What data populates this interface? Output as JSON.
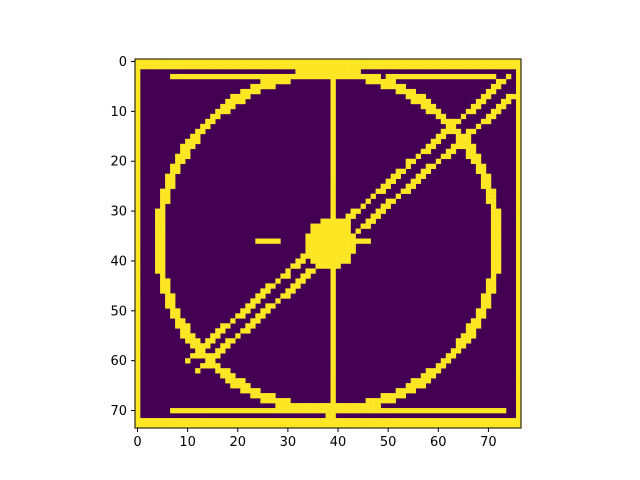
{
  "chart_data": {
    "type": "heatmap",
    "title": "",
    "xlabel": "",
    "ylabel": "",
    "xlim": [
      -0.5,
      76.5
    ],
    "ylim": [
      73.5,
      -0.5
    ],
    "x_ticks": [
      0,
      10,
      20,
      30,
      40,
      50,
      60,
      70
    ],
    "y_ticks": [
      0,
      10,
      20,
      30,
      40,
      50,
      60,
      70
    ],
    "colormap": "viridis",
    "values_binary": [
      0,
      1
    ],
    "colors": {
      "zero": "#440154",
      "one": "#fde725"
    },
    "grid": false,
    "legend": "none",
    "features": {
      "border": "yellow frame around entire image",
      "circle": {
        "center": [
          38,
          36
        ],
        "radius": 34
      },
      "vertical_line": {
        "x": 39,
        "y_from": 0,
        "y_to": 73
      },
      "diagonal_lines": [
        {
          "from": [
            10,
            60
          ],
          "to": [
            74,
            3
          ]
        },
        {
          "from": [
            12,
            62
          ],
          "to": [
            76,
            6
          ]
        }
      ],
      "hub_disk": {
        "center": [
          38.5,
          36.5
        ],
        "radius": 5
      }
    }
  }
}
